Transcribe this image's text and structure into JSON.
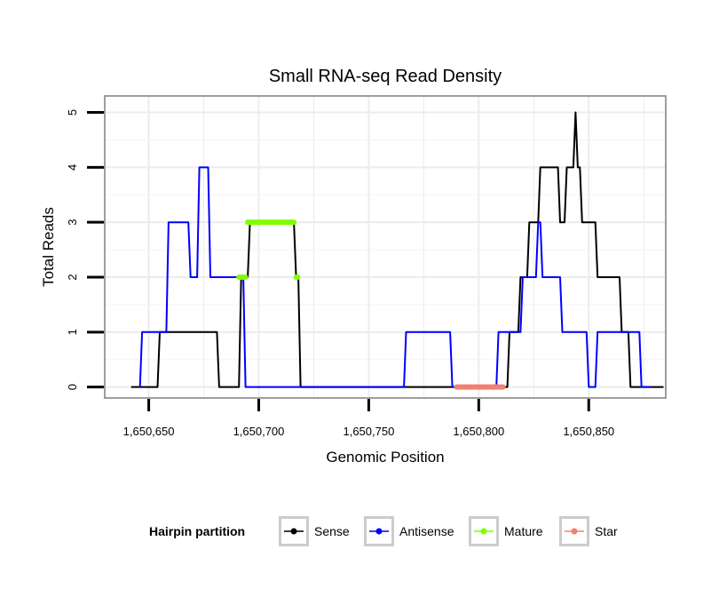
{
  "chart_data": {
    "type": "line",
    "title": "Small RNA-seq Read Density",
    "xlabel": "Genomic Position",
    "ylabel": "Total Reads",
    "xlim": [
      1650630,
      1650885
    ],
    "ylim": [
      -0.2,
      5.3
    ],
    "xticks": [
      1650650,
      1650700,
      1650750,
      1650800,
      1650850
    ],
    "xtick_labels": [
      "1,650,650",
      "1,650,700",
      "1,650,750",
      "1,650,800",
      "1,650,850"
    ],
    "yticks": [
      0,
      1,
      2,
      3,
      4,
      5
    ],
    "ytick_labels": [
      "0",
      "1",
      "2",
      "3",
      "4",
      "5"
    ],
    "grid": true,
    "legend": {
      "title": "Hairpin partition",
      "position": "bottom",
      "entries": [
        "Sense",
        "Antisense",
        "Mature",
        "Star"
      ]
    },
    "series": [
      {
        "name": "Sense",
        "color": "#000000",
        "x": [
          1650642,
          1650654,
          1650655,
          1650677,
          1650678,
          1650681,
          1650682,
          1650691,
          1650692,
          1650695,
          1650696,
          1650716,
          1650717,
          1650718,
          1650719,
          1650811,
          1650812,
          1650813,
          1650814,
          1650818,
          1650819,
          1650822,
          1650823,
          1650824,
          1650825,
          1650827,
          1650828,
          1650836,
          1650837,
          1650839,
          1650840,
          1650842,
          1650843,
          1650844,
          1650845,
          1650846,
          1650847,
          1650853,
          1650854,
          1650864,
          1650865,
          1650868,
          1650869,
          1650884
        ],
        "y": [
          0,
          0,
          1,
          1,
          1,
          1,
          0,
          0,
          2,
          2,
          3,
          3,
          2,
          2,
          0,
          0,
          0,
          0,
          1,
          1,
          2,
          2,
          3,
          3,
          3,
          3,
          4,
          4,
          3,
          3,
          4,
          4,
          4,
          5,
          4,
          4,
          3,
          3,
          2,
          2,
          1,
          1,
          0,
          0
        ]
      },
      {
        "name": "Antisense",
        "color": "#0000ff",
        "x": [
          1650646,
          1650647,
          1650653,
          1650654,
          1650658,
          1650659,
          1650668,
          1650669,
          1650672,
          1650673,
          1650677,
          1650678,
          1650691,
          1650692,
          1650693,
          1650694,
          1650766,
          1650767,
          1650787,
          1650788,
          1650808,
          1650809,
          1650815,
          1650816,
          1650819,
          1650820,
          1650826,
          1650827,
          1650828,
          1650829,
          1650837,
          1650838,
          1650844,
          1650845,
          1650849,
          1650850,
          1650853,
          1650854,
          1650864,
          1650865,
          1650873,
          1650874,
          1650878
        ],
        "y": [
          0,
          1,
          1,
          1,
          1,
          3,
          3,
          2,
          2,
          4,
          4,
          2,
          2,
          2,
          2,
          0,
          0,
          1,
          1,
          0,
          0,
          1,
          1,
          1,
          1,
          2,
          2,
          3,
          3,
          2,
          2,
          1,
          1,
          1,
          1,
          0,
          0,
          1,
          1,
          1,
          1,
          0,
          0
        ]
      },
      {
        "name": "Mature",
        "color": "#7fff00",
        "segments": [
          {
            "x": [
              1650691,
              1650694
            ],
            "y": [
              2,
              2
            ]
          },
          {
            "x": [
              1650695,
              1650716
            ],
            "y": [
              3,
              3
            ]
          },
          {
            "x": [
              1650717,
              1650717.7
            ],
            "y": [
              2,
              2
            ]
          }
        ]
      },
      {
        "name": "Star",
        "color": "#f08070",
        "segments": [
          {
            "x": [
              1650790,
              1650811
            ],
            "y": [
              0,
              0
            ]
          }
        ]
      }
    ]
  }
}
